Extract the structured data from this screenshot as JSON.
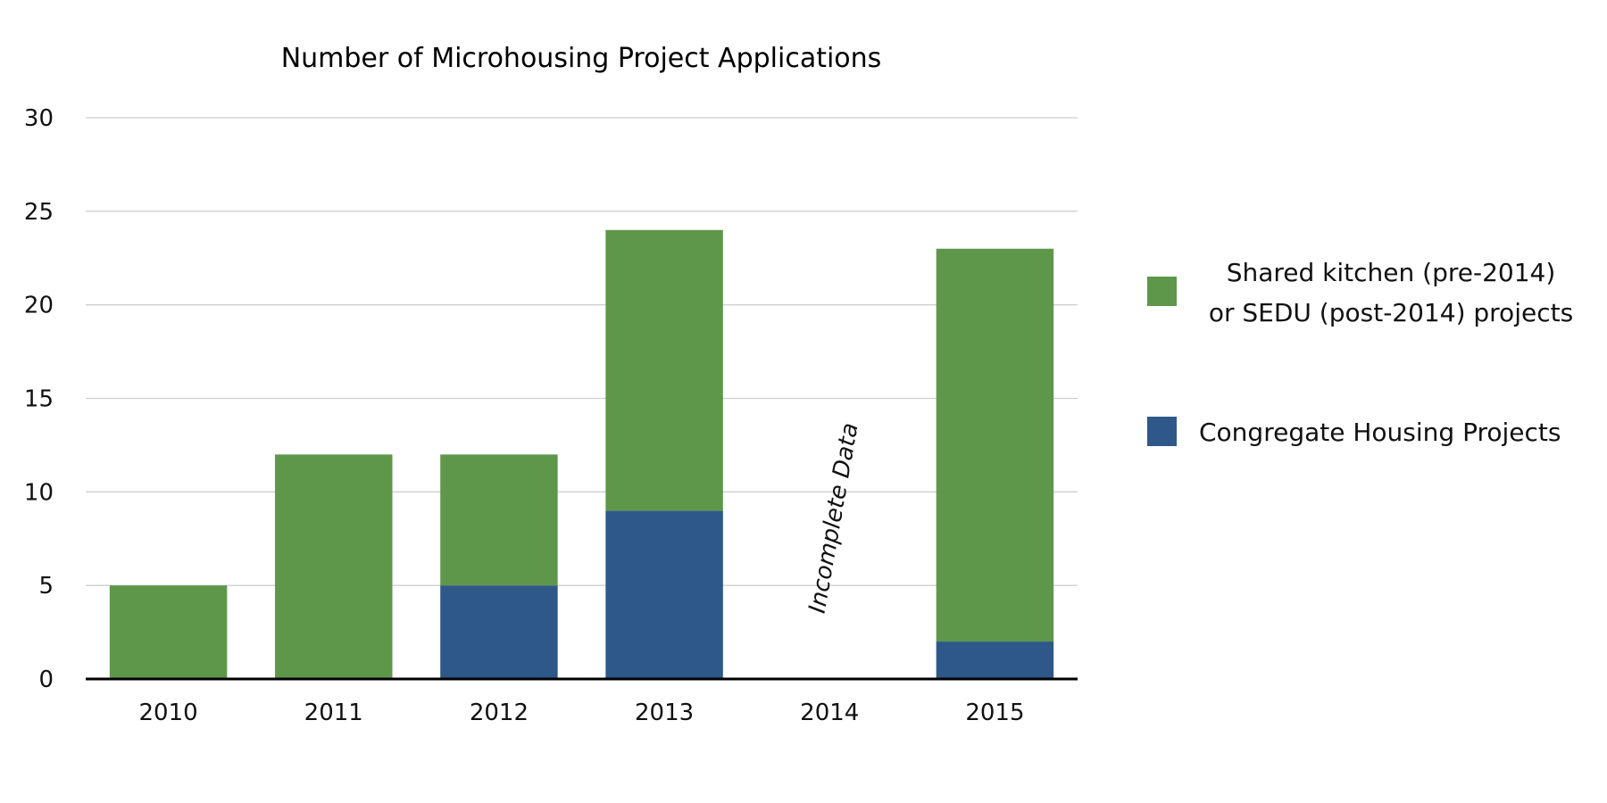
{
  "chart_data": {
    "type": "bar",
    "stacked": true,
    "title": "Number of Microhousing Project Applications",
    "xlabel": "",
    "ylabel": "",
    "categories": [
      "2010",
      "2011",
      "2012",
      "2013",
      "2014",
      "2015"
    ],
    "ylim": [
      0,
      30
    ],
    "yticks": [
      0,
      5,
      10,
      15,
      20,
      25,
      30
    ],
    "grid": true,
    "legend_placement": "right",
    "series": [
      {
        "name": "Congregate Housing Projects",
        "color": "#2e5889",
        "values": [
          0,
          0,
          5,
          9,
          0,
          2
        ]
      },
      {
        "name_lines": [
          "Shared kitchen (pre-2014)",
          "or SEDU (post-2014) projects"
        ],
        "name": "Shared kitchen (pre-2014) or SEDU (post-2014) projects",
        "color": "#5e974a",
        "values": [
          5,
          12,
          7,
          15,
          0,
          21
        ]
      }
    ],
    "annotations": [
      {
        "category": "2014",
        "text": "Incomplete Data"
      }
    ]
  }
}
